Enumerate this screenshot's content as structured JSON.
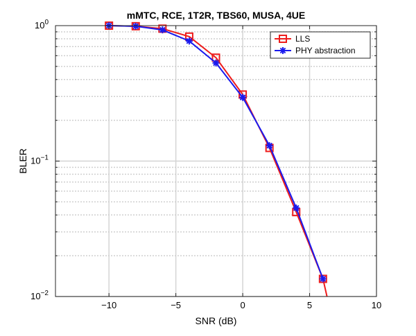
{
  "chart_data": {
    "type": "line",
    "title": "mMTC, RCE, 1T2R, TBS60, MUSA, 4UE",
    "xlabel": "SNR (dB)",
    "ylabel": "BLER",
    "xlim": [
      -14,
      10
    ],
    "ylim": [
      0.01,
      1
    ],
    "y_scale": "log",
    "grid": true,
    "legend_position": "top-right",
    "x_ticks": [
      -10,
      -5,
      0,
      5,
      10
    ],
    "x_tick_labels": [
      "−10",
      "−5",
      "0",
      "5",
      "10"
    ],
    "y_ticks": [
      0.01,
      0.1,
      1
    ],
    "y_tick_bases": [
      "10",
      "10",
      "10"
    ],
    "y_tick_exponents": [
      "−2",
      "−1",
      "0"
    ],
    "series": [
      {
        "name": "LLS",
        "color": "#ee1c1c",
        "marker": "square",
        "x": [
          -10,
          -8,
          -6,
          -4,
          -2,
          0,
          2,
          4,
          6,
          6.3
        ],
        "y": [
          1.0,
          0.99,
          0.95,
          0.83,
          0.58,
          0.31,
          0.125,
          0.042,
          0.0135,
          0.01
        ]
      },
      {
        "name": "PHY abstraction",
        "color": "#1a1aee",
        "marker": "asterisk",
        "x": [
          -10,
          -8,
          -6,
          -4,
          -2,
          0,
          2,
          4,
          6
        ],
        "y": [
          1.0,
          0.99,
          0.93,
          0.77,
          0.53,
          0.295,
          0.13,
          0.045,
          0.0135
        ]
      }
    ]
  }
}
